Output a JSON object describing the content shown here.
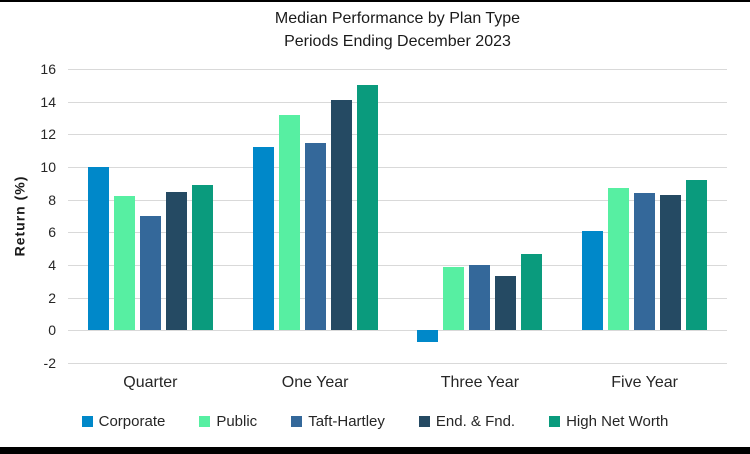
{
  "frame": {
    "top_rule_color": "#000000",
    "bottom_rule_color": "#000000",
    "background": "#ffffff",
    "gridline_color": "#d9d9d9",
    "text_color": "#262626"
  },
  "chart_data": {
    "type": "bar",
    "title": "Median Performance by Plan Type",
    "subtitle": "Periods Ending December 2023",
    "xlabel": "",
    "ylabel": "Return (%)",
    "ylim": [
      -2,
      16
    ],
    "ytick_step": 2,
    "grid": true,
    "legend_position": "bottom",
    "categories": [
      "Quarter",
      "One Year",
      "Three Year",
      "Five Year"
    ],
    "series": [
      {
        "name": "Corporate",
        "color": "#0088c9",
        "values": [
          10.0,
          11.2,
          -0.7,
          6.1
        ]
      },
      {
        "name": "Public",
        "color": "#57efa2",
        "values": [
          8.2,
          13.2,
          3.9,
          8.7
        ]
      },
      {
        "name": "Taft-Hartley",
        "color": "#34689a",
        "values": [
          7.0,
          11.5,
          4.0,
          8.4
        ]
      },
      {
        "name": "End. & Fnd.",
        "color": "#254a63",
        "values": [
          8.5,
          14.1,
          3.3,
          8.3
        ]
      },
      {
        "name": "High Net Worth",
        "color": "#0a9b7d",
        "values": [
          8.9,
          15.0,
          4.7,
          9.2
        ]
      }
    ]
  }
}
